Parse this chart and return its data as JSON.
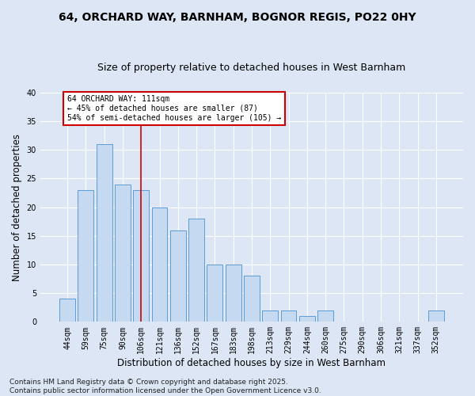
{
  "title1": "64, ORCHARD WAY, BARNHAM, BOGNOR REGIS, PO22 0HY",
  "title2": "Size of property relative to detached houses in West Barnham",
  "xlabel": "Distribution of detached houses by size in West Barnham",
  "ylabel": "Number of detached properties",
  "categories": [
    "44sqm",
    "59sqm",
    "75sqm",
    "90sqm",
    "106sqm",
    "121sqm",
    "136sqm",
    "152sqm",
    "167sqm",
    "183sqm",
    "198sqm",
    "213sqm",
    "229sqm",
    "244sqm",
    "260sqm",
    "275sqm",
    "290sqm",
    "306sqm",
    "321sqm",
    "337sqm",
    "352sqm"
  ],
  "values": [
    4,
    23,
    31,
    24,
    23,
    20,
    16,
    18,
    10,
    10,
    8,
    2,
    2,
    1,
    2,
    0,
    0,
    0,
    0,
    0,
    2
  ],
  "bar_color": "#c5d9f1",
  "bar_edge_color": "#5b9bd5",
  "vline_x_index": 4,
  "vline_color": "#cc0000",
  "annotation_lines": [
    "64 ORCHARD WAY: 111sqm",
    "← 45% of detached houses are smaller (87)",
    "54% of semi-detached houses are larger (105) →"
  ],
  "annotation_box_color": "#cc0000",
  "ylim": [
    0,
    40
  ],
  "yticks": [
    0,
    5,
    10,
    15,
    20,
    25,
    30,
    35,
    40
  ],
  "footnote": "Contains HM Land Registry data © Crown copyright and database right 2025.\nContains public sector information licensed under the Open Government Licence v3.0.",
  "bg_color": "#dce6f5",
  "plot_bg_color": "#dce6f5",
  "grid_color": "#ffffff",
  "title1_fontsize": 10,
  "title2_fontsize": 9,
  "tick_fontsize": 7,
  "label_fontsize": 8.5,
  "footnote_fontsize": 6.5
}
